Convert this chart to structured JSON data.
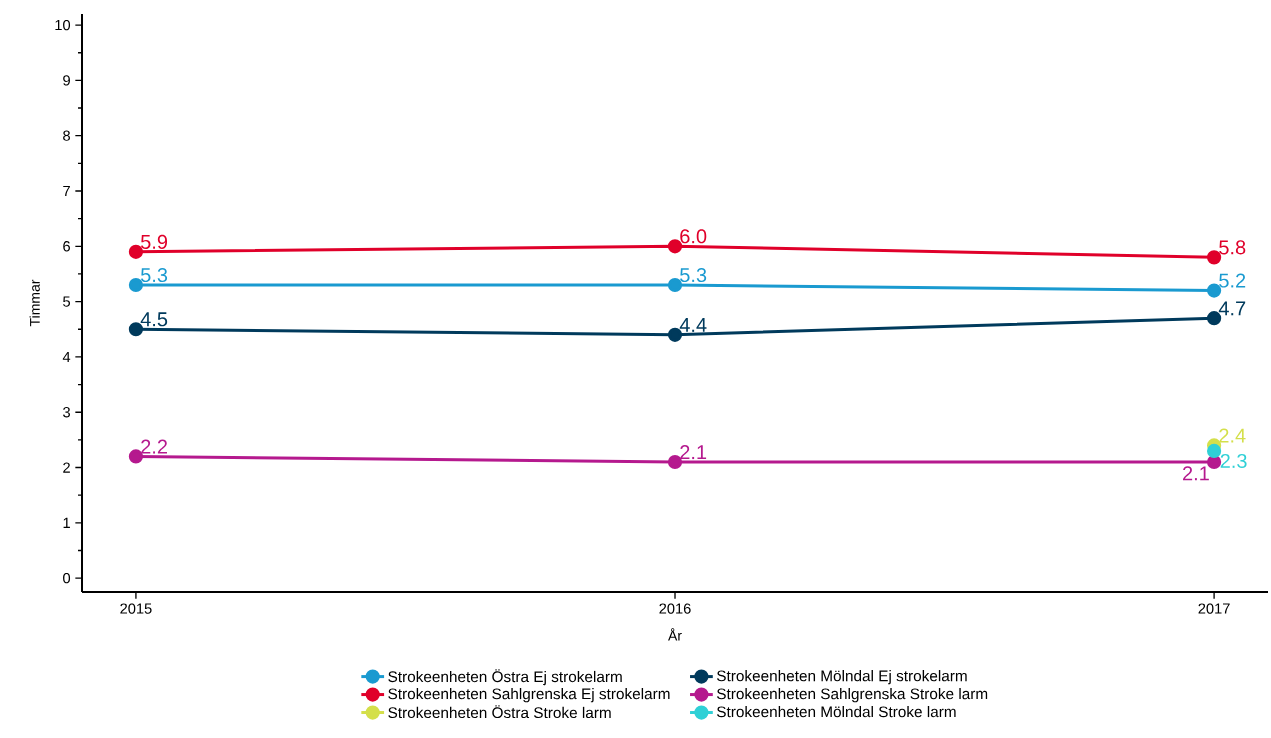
{
  "chart_data": {
    "type": "line",
    "xlabel": "År",
    "ylabel": "Timmar",
    "x": [
      2015,
      2016,
      2017
    ],
    "xlim": [
      2014.9,
      2017.1
    ],
    "xticks": [
      2015,
      2016,
      2017
    ],
    "ylim": [
      -0.25,
      10.2
    ],
    "yticks": [
      0,
      1,
      2,
      3,
      4,
      5,
      6,
      7,
      8,
      9,
      10
    ],
    "series": [
      {
        "name": "Strokeenheten Östra Ej strokelarm",
        "color": "#1a9ad0",
        "values": [
          5.3,
          5.3,
          5.2
        ],
        "value_labels": [
          "5.3",
          "5.3",
          "5.2"
        ]
      },
      {
        "name": "Strokeenheten Mölndal Ej strokelarm",
        "color": "#003a5c",
        "values": [
          4.5,
          4.4,
          4.7
        ],
        "value_labels": [
          "4.5",
          "4.4",
          "4.7"
        ]
      },
      {
        "name": "Strokeenheten Sahlgrenska Ej strokelarm",
        "color": "#e0002a",
        "values": [
          5.9,
          6.0,
          5.8
        ],
        "value_labels": [
          "5.9",
          "6.0",
          "5.8"
        ]
      },
      {
        "name": "Strokeenheten Sahlgrenska Stroke larm",
        "color": "#b5198e",
        "values": [
          2.2,
          2.1,
          2.1
        ],
        "value_labels": [
          "2.2",
          "2.1",
          "2.1"
        ]
      },
      {
        "name": "Strokeenheten Östra Stroke larm",
        "color": "#d4df4a",
        "values": [
          null,
          null,
          2.4
        ],
        "value_labels": [
          null,
          null,
          "2.4"
        ]
      },
      {
        "name": "Strokeenheten Mölndal Stroke larm",
        "color": "#2fd0d6",
        "values": [
          null,
          null,
          2.3
        ],
        "value_labels": [
          null,
          null,
          "2.3"
        ]
      }
    ],
    "marker": "circle",
    "line_style": "solid",
    "grid": false,
    "legend": "bottom"
  }
}
